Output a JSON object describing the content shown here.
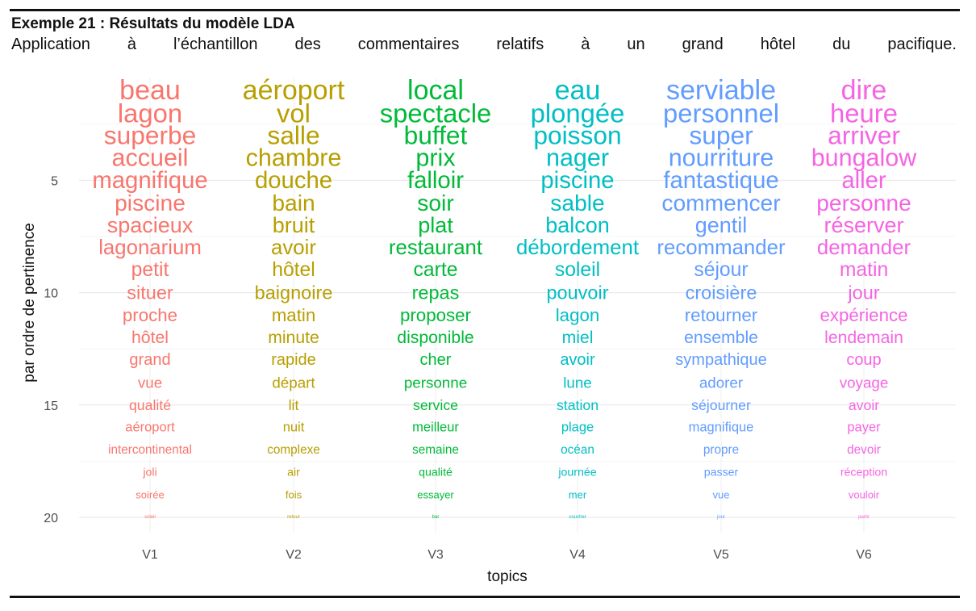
{
  "header": {
    "title": "Exemple 21 : Résultats du modèle LDA",
    "subtitle": "Application à l’échantillon des commentaires relatifs à un grand hôtel du pacifique."
  },
  "chart_data": {
    "type": "word-rank",
    "xlabel": "topics",
    "ylabel": "par ordre de pertinence",
    "y_ticks": [
      5,
      10,
      15,
      20
    ],
    "ylim": [
      20,
      1
    ],
    "grid": true,
    "topics": [
      {
        "name": "V1",
        "color": "#F8766D",
        "words": [
          "beau",
          "lagon",
          "superbe",
          "accueil",
          "magnifique",
          "piscine",
          "spacieux",
          "lagonarium",
          "petit",
          "situer",
          "proche",
          "hôtel",
          "grand",
          "vue",
          "qualité",
          "aéroport",
          "intercontinental",
          "joli",
          "soirée",
          "soleil"
        ]
      },
      {
        "name": "V2",
        "color": "#B79F00",
        "words": [
          "aéroport",
          "vol",
          "salle",
          "chambre",
          "douche",
          "bain",
          "bruit",
          "avoir",
          "hôtel",
          "baignoire",
          "matin",
          "minute",
          "rapide",
          "départ",
          "lit",
          "nuit",
          "complexe",
          "air",
          "fois",
          "retour"
        ]
      },
      {
        "name": "V3",
        "color": "#00BA38",
        "words": [
          "local",
          "spectacle",
          "buffet",
          "prix",
          "falloir",
          "soir",
          "plat",
          "restaurant",
          "carte",
          "repas",
          "proposer",
          "disponible",
          "cher",
          "personne",
          "service",
          "meilleur",
          "semaine",
          "qualité",
          "essayer",
          "bar"
        ]
      },
      {
        "name": "V4",
        "color": "#00BFC4",
        "words": [
          "eau",
          "plongée",
          "poisson",
          "nager",
          "piscine",
          "sable",
          "balcon",
          "débordement",
          "soleil",
          "pouvoir",
          "lagon",
          "miel",
          "avoir",
          "lune",
          "station",
          "plage",
          "océan",
          "journée",
          "mer",
          "coucher"
        ]
      },
      {
        "name": "V5",
        "color": "#619CFF",
        "words": [
          "serviable",
          "personnel",
          "super",
          "nourriture",
          "fantastique",
          "commencer",
          "gentil",
          "recommander",
          "séjour",
          "croisière",
          "retourner",
          "ensemble",
          "sympathique",
          "adorer",
          "séjourner",
          "magnifique",
          "propre",
          "passer",
          "vue",
          "jour"
        ]
      },
      {
        "name": "V6",
        "color": "#F564E3",
        "words": [
          "dire",
          "heure",
          "arriver",
          "bungalow",
          "aller",
          "personne",
          "réserver",
          "demander",
          "matin",
          "jour",
          "expérience",
          "lendemain",
          "coup",
          "voyage",
          "avoir",
          "payer",
          "devoir",
          "réception",
          "vouloir",
          "partir"
        ]
      }
    ]
  }
}
